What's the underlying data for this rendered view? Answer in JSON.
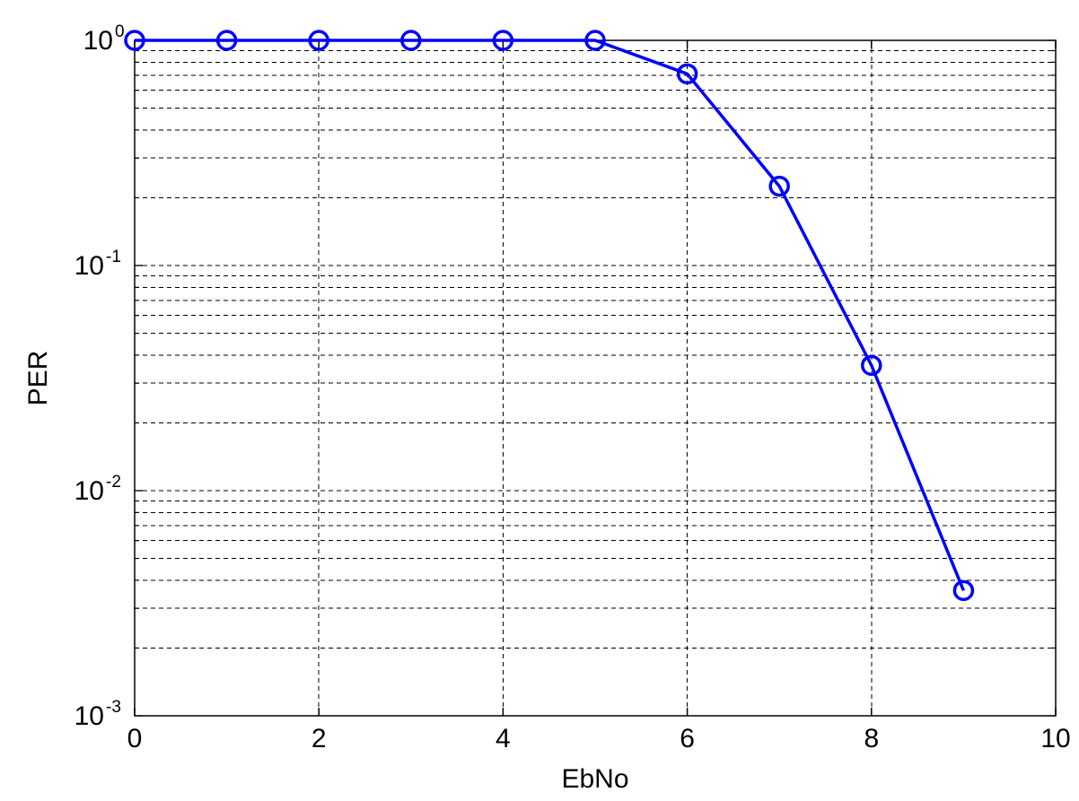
{
  "chart_data": {
    "type": "line",
    "xlabel": "EbNo",
    "ylabel": "PER",
    "xlim": [
      0,
      10
    ],
    "ylim": [
      0.001,
      1
    ],
    "yscale": "log",
    "grid": true,
    "xticks": [
      "0",
      "2",
      "4",
      "6",
      "8",
      "10"
    ],
    "yticks": [
      {
        "base": "10",
        "exp": "0"
      },
      {
        "base": "10",
        "exp": "-1"
      },
      {
        "base": "10",
        "exp": "-2"
      },
      {
        "base": "10",
        "exp": "-3"
      }
    ],
    "series": [
      {
        "color": "#0000ff",
        "marker": "circle",
        "x": [
          0,
          1,
          2,
          3,
          4,
          5,
          6,
          7,
          8,
          9
        ],
        "y": [
          1.0,
          1.0,
          1.0,
          1.0,
          1.0,
          1.0,
          0.71,
          0.225,
          0.036,
          0.0036
        ]
      }
    ]
  }
}
